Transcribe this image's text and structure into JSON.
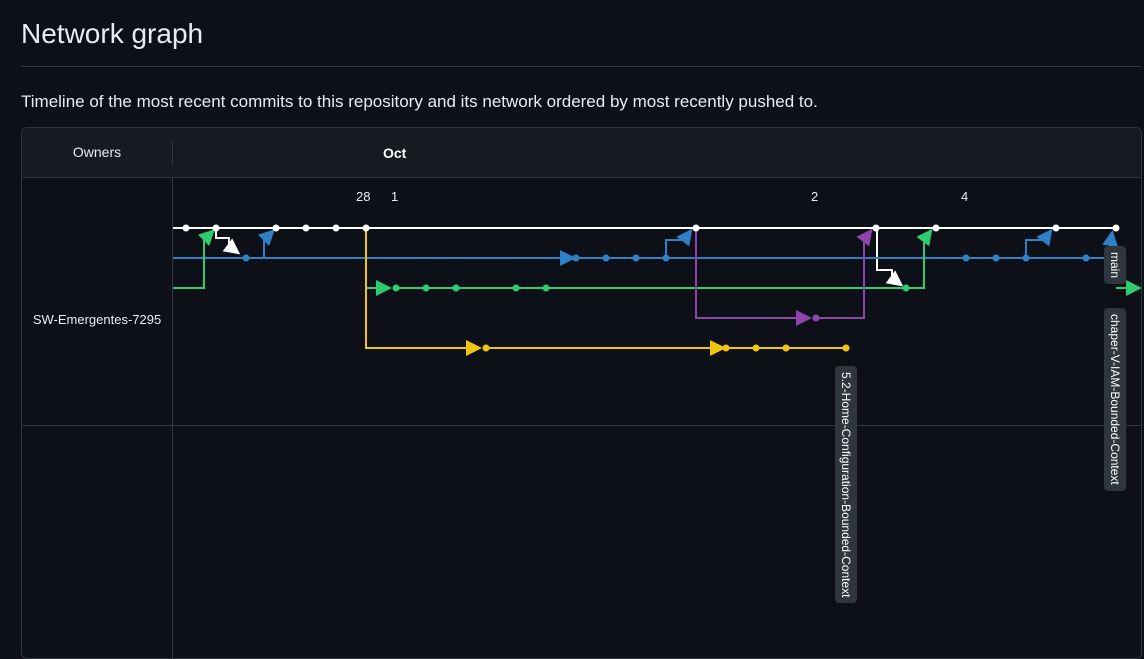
{
  "page": {
    "title": "Network graph",
    "subtitle": "Timeline of the most recent commits to this repository and its network ordered by most recently pushed to."
  },
  "graph": {
    "owners_header": "Owners",
    "month": "Oct",
    "days": [
      "28",
      "1",
      "2",
      "4"
    ],
    "owner": "SW-Emergentes-7295",
    "branch_labels": {
      "main": "main",
      "chapter": "chaper-V-IAM-Bounded-Context",
      "home_config": "5.2-Home-Configuration-Bounded-Context"
    },
    "colors": {
      "background": "#0d1117",
      "header": "#161b22",
      "border": "#30363d",
      "white_branch": "#ffffff",
      "blue_branch": "#2f81c7",
      "green_branch": "#2ecc71",
      "purple_branch": "#8e44ad",
      "yellow_branch": "#f1c40f",
      "tag_bg": "#30363d"
    }
  }
}
